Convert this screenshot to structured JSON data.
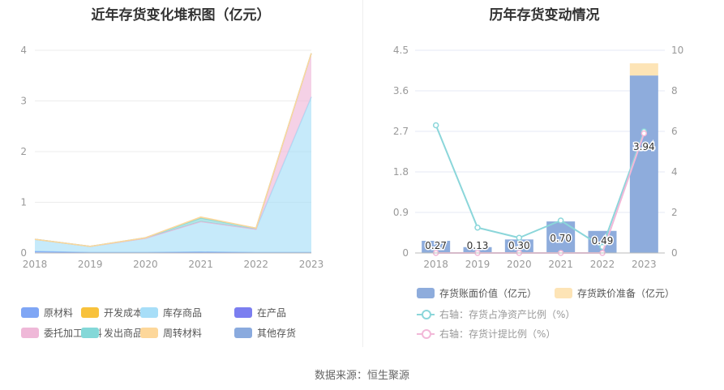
{
  "left_title": "近年存货变化堆积图（亿元）",
  "right_title": "历年存货变动情况",
  "footer": "数据来源：恒生聚源",
  "chart_data": [
    {
      "type": "area",
      "title": "近年存货变化堆积图（亿元）",
      "x": [
        "2018",
        "2019",
        "2020",
        "2021",
        "2022",
        "2023"
      ],
      "ylim": [
        0,
        4
      ],
      "yticks": [
        "0",
        "1",
        "2",
        "3",
        "4"
      ],
      "grid": true,
      "legend_position": "bottom",
      "series": [
        {
          "name": "原材料",
          "color": "#7fa6f5",
          "values": [
            0.03,
            0.01,
            0.01,
            0.02,
            0.01,
            0.01
          ]
        },
        {
          "name": "开发成本",
          "color": "#f8c23c",
          "values": [
            0,
            0,
            0,
            0,
            0,
            0
          ]
        },
        {
          "name": "库存商品",
          "color": "#a7def8",
          "values": [
            0.24,
            0.12,
            0.28,
            0.6,
            0.46,
            3.07
          ]
        },
        {
          "name": "在产品",
          "color": "#7b7ef0",
          "values": [
            0,
            0,
            0,
            0,
            0,
            0
          ]
        },
        {
          "name": "委托加工材料",
          "color": "#efb8d8",
          "values": [
            0,
            0,
            0,
            0,
            0,
            0.86
          ]
        },
        {
          "name": "发出商品",
          "color": "#84d8d8",
          "values": [
            0,
            0,
            0.01,
            0.07,
            0.02,
            0
          ]
        },
        {
          "name": "周转材料",
          "color": "#fdd79a",
          "values": [
            0,
            0,
            0,
            0.02,
            0,
            0
          ]
        },
        {
          "name": "其他存货",
          "color": "#8aaade",
          "values": [
            0,
            0,
            0,
            0,
            0,
            0
          ]
        }
      ]
    },
    {
      "type": "bar",
      "title": "历年存货变动情况",
      "categories": [
        "2018",
        "2019",
        "2020",
        "2021",
        "2022",
        "2023"
      ],
      "ylim_left": [
        0,
        4.5
      ],
      "yticks_left": [
        "0",
        "0.9",
        "1.8",
        "2.7",
        "3.6",
        "4.5"
      ],
      "ylim_right": [
        0,
        10
      ],
      "yticks_right": [
        "0",
        "2",
        "4",
        "6",
        "8",
        "10"
      ],
      "grid": true,
      "legend_position": "bottom",
      "series": [
        {
          "name": "存货账面价值（亿元）",
          "type": "bar",
          "axis": "left",
          "color": "#8eacdc",
          "values": [
            0.27,
            0.13,
            0.3,
            0.7,
            0.49,
            3.94
          ],
          "labels": [
            "0.27",
            "0.13",
            "0.30",
            "0.70",
            "0.49",
            "3.94"
          ]
        },
        {
          "name": "存货跌价准备（亿元）",
          "type": "bar",
          "axis": "left",
          "color": "#fde4b6",
          "values": [
            0,
            0,
            0,
            0,
            0,
            0.27
          ]
        },
        {
          "name": "右轴：存货占净资产比例（%）",
          "type": "line",
          "axis": "right",
          "color": "#8bd6da",
          "values": [
            6.3,
            1.25,
            0.75,
            1.6,
            0.3,
            6.0
          ]
        },
        {
          "name": "右轴：存货计提比例（%）",
          "type": "line",
          "axis": "right",
          "color": "#f2b8d8",
          "values": [
            0,
            0,
            0,
            0,
            0,
            5.9
          ]
        }
      ]
    }
  ]
}
